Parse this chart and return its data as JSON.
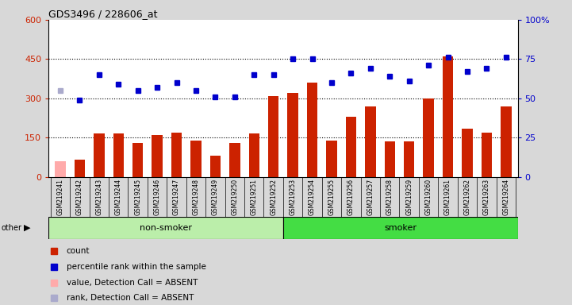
{
  "title": "GDS3496 / 228606_at",
  "samples": [
    "GSM219241",
    "GSM219242",
    "GSM219243",
    "GSM219244",
    "GSM219245",
    "GSM219246",
    "GSM219247",
    "GSM219248",
    "GSM219249",
    "GSM219250",
    "GSM219251",
    "GSM219252",
    "GSM219253",
    "GSM219254",
    "GSM219255",
    "GSM219256",
    "GSM219257",
    "GSM219258",
    "GSM219259",
    "GSM219260",
    "GSM219261",
    "GSM219262",
    "GSM219263",
    "GSM219264"
  ],
  "count_values": [
    60,
    65,
    165,
    165,
    130,
    160,
    170,
    140,
    80,
    130,
    165,
    310,
    320,
    360,
    140,
    230,
    270,
    135,
    135,
    300,
    460,
    185,
    170,
    270
  ],
  "rank_values": [
    55,
    49,
    65,
    59,
    55,
    57,
    60,
    55,
    51,
    51,
    65,
    65,
    75,
    75,
    60,
    66,
    69,
    64,
    61,
    71,
    76,
    67,
    69,
    76
  ],
  "absent_count": [
    true,
    false,
    false,
    false,
    false,
    false,
    false,
    false,
    false,
    false,
    false,
    false,
    false,
    false,
    false,
    false,
    false,
    false,
    false,
    false,
    false,
    false,
    false,
    false
  ],
  "absent_rank": [
    true,
    false,
    false,
    false,
    false,
    false,
    false,
    false,
    false,
    false,
    false,
    false,
    false,
    false,
    false,
    false,
    false,
    false,
    false,
    false,
    false,
    false,
    false,
    false
  ],
  "non_smoker_count": 12,
  "smoker_count": 12,
  "ylim_left": [
    0,
    600
  ],
  "ylim_right": [
    0,
    100
  ],
  "yticks_left": [
    0,
    150,
    300,
    450,
    600
  ],
  "yticks_right": [
    0,
    25,
    50,
    75,
    100
  ],
  "bar_color_normal": "#cc2200",
  "bar_color_absent": "#ffaaaa",
  "dot_color_normal": "#0000cc",
  "dot_color_absent": "#aaaacc",
  "background_color": "#d8d8d8",
  "plot_bg": "#ffffff",
  "xtick_bg": "#cccccc",
  "ns_group_color": "#bbeeaa",
  "s_group_color": "#44dd44",
  "legend_items": [
    "count",
    "percentile rank within the sample",
    "value, Detection Call = ABSENT",
    "rank, Detection Call = ABSENT"
  ],
  "legend_colors": [
    "#cc2200",
    "#0000cc",
    "#ffaaaa",
    "#aaaacc"
  ]
}
